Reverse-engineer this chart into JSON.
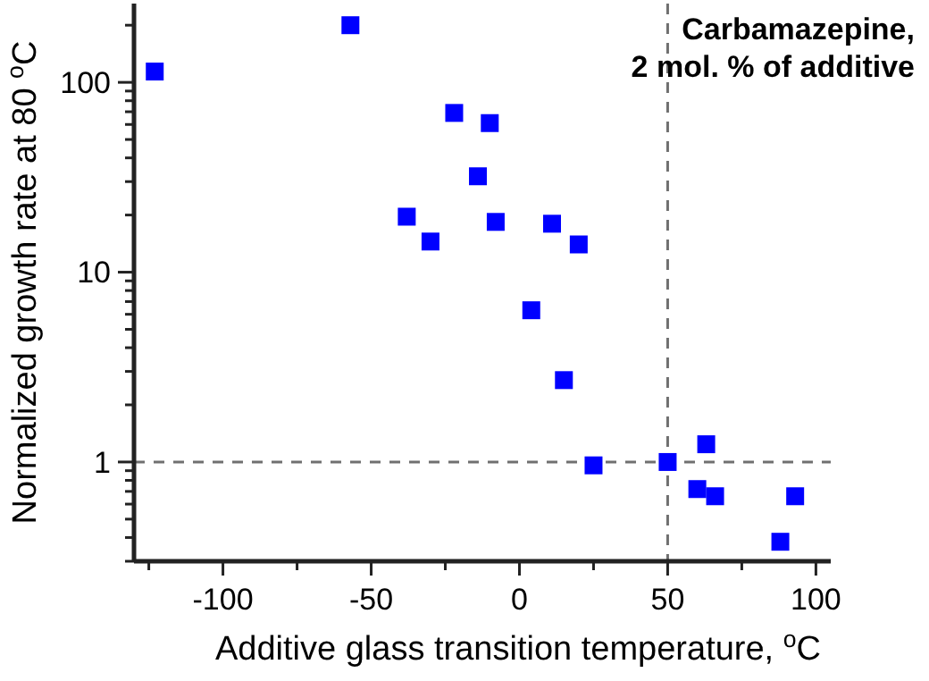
{
  "chart_data": {
    "type": "scatter",
    "xlabel": "Additive glass transition temperature, $^{o}$C",
    "ylabel": "Normalized growth rate at 80 $^{o}$C",
    "annotations": [
      "Carbamazepine,\n2 mol. % of additive"
    ],
    "log": "y",
    "marker": "square",
    "grid": false,
    "xlim": [
      -130,
      105
    ],
    "ylim": [
      0.3,
      260
    ],
    "xticks": [
      {
        "value": -125,
        "label": null
      },
      -100,
      {
        "value": -75,
        "label": null
      },
      -50,
      {
        "value": -25,
        "label": null
      },
      0,
      {
        "value": 25,
        "label": null
      },
      50,
      {
        "value": 75,
        "label": null
      },
      100
    ],
    "yticks": [
      {
        "value": 0.3,
        "label": null
      },
      {
        "value": 0.4,
        "label": null
      },
      {
        "value": 0.5,
        "label": null
      },
      {
        "value": 0.6,
        "label": null
      },
      {
        "value": 0.7,
        "label": null
      },
      {
        "value": 0.8,
        "label": null
      },
      {
        "value": 0.9,
        "label": null
      },
      1,
      {
        "value": 2,
        "label": null
      },
      {
        "value": 3,
        "label": null
      },
      {
        "value": 4,
        "label": null
      },
      {
        "value": 5,
        "label": null
      },
      {
        "value": 6,
        "label": null
      },
      {
        "value": 7,
        "label": null
      },
      {
        "value": 8,
        "label": null
      },
      {
        "value": 9,
        "label": null
      },
      10,
      {
        "value": 20,
        "label": null
      },
      {
        "value": 30,
        "label": null
      },
      {
        "value": 40,
        "label": null
      },
      {
        "value": 50,
        "label": null
      },
      {
        "value": 60,
        "label": null
      },
      {
        "value": 70,
        "label": null
      },
      {
        "value": 80,
        "label": null
      },
      {
        "value": 90,
        "label": null
      },
      100,
      {
        "value": 200,
        "label": null
      }
    ],
    "ref_lines": [
      {
        "axis": "x",
        "value": 50,
        "color": "#707070",
        "line_style": "dashed"
      },
      {
        "axis": "y",
        "value": 1,
        "color": "#707070",
        "line_style": "dashed"
      }
    ],
    "series": [
      {
        "color": "#0000ff",
        "x": [
          -123,
          -57,
          -22,
          -10,
          -14,
          -38,
          -30,
          -8,
          11,
          20,
          4,
          15,
          25,
          50,
          63,
          60,
          66,
          93,
          88
        ],
        "values": [
          114,
          200,
          69,
          61,
          32,
          19.6,
          14.5,
          18.4,
          18,
          14,
          6.3,
          2.7,
          0.96,
          1.0,
          1.24,
          0.72,
          0.66,
          0.66,
          0.38
        ]
      }
    ]
  }
}
